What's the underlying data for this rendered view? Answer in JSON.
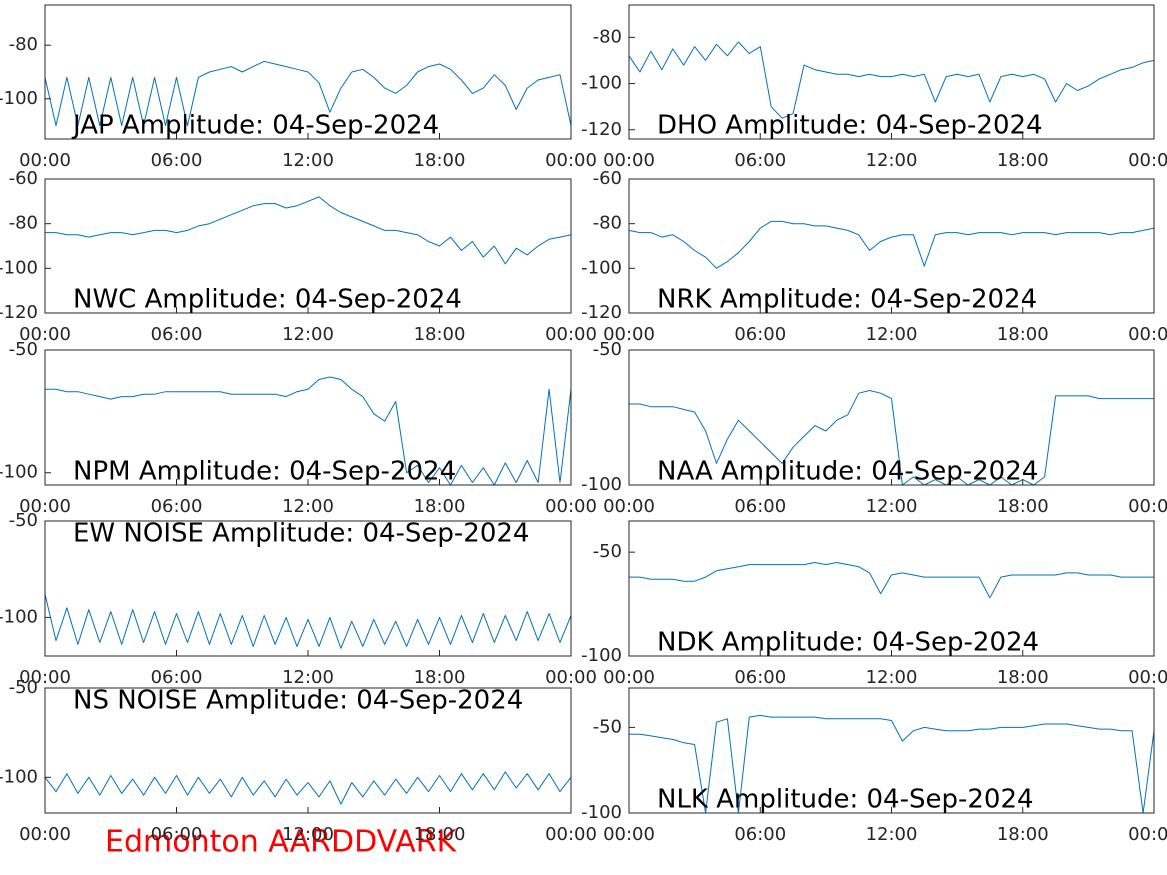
{
  "chart_data": [
    {
      "type": "line",
      "title": "JAP Amplitude: 04-Sep-2024",
      "color": "#0072bd",
      "xlim": [
        0,
        24
      ],
      "ylim": [
        -115,
        -65
      ],
      "yticks": [
        -100,
        -80
      ],
      "xticks": [
        {
          "value": 0,
          "label": "00:00"
        },
        {
          "value": 6,
          "label": "06:00"
        },
        {
          "value": 12,
          "label": "12:00"
        },
        {
          "value": 18,
          "label": "18:00"
        },
        {
          "value": 24,
          "label": "00:00"
        }
      ],
      "x": [
        0,
        0.5,
        1,
        1.5,
        2,
        2.5,
        3,
        3.5,
        4,
        4.5,
        5,
        5.5,
        6,
        6.5,
        7,
        7.5,
        8,
        8.5,
        9,
        9.5,
        10,
        10.5,
        11,
        11.5,
        12,
        12.5,
        13,
        13.5,
        14,
        14.5,
        15,
        15.5,
        16,
        16.5,
        17,
        17.5,
        18,
        18.5,
        19,
        19.5,
        20,
        20.5,
        21,
        21.5,
        22,
        22.5,
        23,
        23.5,
        24
      ],
      "values": [
        -92,
        -110,
        -92,
        -110,
        -92,
        -110,
        -92,
        -110,
        -92,
        -110,
        -92,
        -110,
        -92,
        -110,
        -92,
        -90,
        -89,
        -88,
        -90,
        -88,
        -86,
        -87,
        -88,
        -89,
        -90,
        -94,
        -105,
        -96,
        -90,
        -89,
        -92,
        -96,
        -98,
        -95,
        -90,
        -88,
        -87,
        -89,
        -93,
        -98,
        -96,
        -91,
        -95,
        -104,
        -96,
        -93,
        -92,
        -91,
        -110
      ]
    },
    {
      "type": "line",
      "title": "DHO Amplitude: 04-Sep-2024",
      "color": "#0072bd",
      "xlim": [
        0,
        24
      ],
      "ylim": [
        -124,
        -66
      ],
      "yticks": [
        -120,
        -100,
        -80
      ],
      "xticks": [
        {
          "value": 0,
          "label": "00:00"
        },
        {
          "value": 6,
          "label": "06:00"
        },
        {
          "value": 12,
          "label": "12:00"
        },
        {
          "value": 18,
          "label": "18:00"
        },
        {
          "value": 24,
          "label": "00:00"
        }
      ],
      "x": [
        0,
        0.5,
        1,
        1.5,
        2,
        2.5,
        3,
        3.5,
        4,
        4.5,
        5,
        5.5,
        6,
        6.5,
        7,
        7.5,
        8,
        8.5,
        9,
        9.5,
        10,
        10.5,
        11,
        11.5,
        12,
        12.5,
        13,
        13.5,
        14,
        14.5,
        15,
        15.5,
        16,
        16.5,
        17,
        17.5,
        18,
        18.5,
        19,
        19.5,
        20,
        20.5,
        21,
        21.5,
        22,
        22.5,
        23,
        23.5,
        24
      ],
      "values": [
        -88,
        -95,
        -86,
        -94,
        -85,
        -92,
        -84,
        -90,
        -83,
        -88,
        -82,
        -87,
        -84,
        -110,
        -115,
        -113,
        -92,
        -94,
        -95,
        -96,
        -96,
        -97,
        -96,
        -97,
        -97,
        -96,
        -97,
        -96,
        -108,
        -97,
        -96,
        -97,
        -96,
        -108,
        -97,
        -96,
        -97,
        -96,
        -98,
        -108,
        -100,
        -103,
        -101,
        -98,
        -96,
        -94,
        -93,
        -91,
        -90
      ]
    },
    {
      "type": "line",
      "title": "NWC Amplitude: 04-Sep-2024",
      "color": "#0072bd",
      "xlim": [
        0,
        24
      ],
      "ylim": [
        -120,
        -60
      ],
      "yticks": [
        -120,
        -100,
        -80,
        -60
      ],
      "xticks": [
        {
          "value": 0,
          "label": "00:00"
        },
        {
          "value": 6,
          "label": "06:00"
        },
        {
          "value": 12,
          "label": "12:00"
        },
        {
          "value": 18,
          "label": "18:00"
        },
        {
          "value": 24,
          "label": "00:00"
        }
      ],
      "x": [
        0,
        0.5,
        1,
        1.5,
        2,
        2.5,
        3,
        3.5,
        4,
        4.5,
        5,
        5.5,
        6,
        6.5,
        7,
        7.5,
        8,
        8.5,
        9,
        9.5,
        10,
        10.5,
        11,
        11.5,
        12,
        12.5,
        13,
        13.5,
        14,
        14.5,
        15,
        15.5,
        16,
        16.5,
        17,
        17.5,
        18,
        18.5,
        19,
        19.5,
        20,
        20.5,
        21,
        21.5,
        22,
        22.5,
        23,
        23.5,
        24
      ],
      "values": [
        -84,
        -84,
        -85,
        -85,
        -86,
        -85,
        -84,
        -84,
        -85,
        -84,
        -83,
        -83,
        -84,
        -83,
        -81,
        -80,
        -78,
        -76,
        -74,
        -72,
        -71,
        -71,
        -73,
        -72,
        -70,
        -68,
        -72,
        -75,
        -77,
        -79,
        -81,
        -83,
        -83,
        -84,
        -85,
        -88,
        -90,
        -86,
        -92,
        -88,
        -95,
        -90,
        -98,
        -91,
        -94,
        -90,
        -87,
        -86,
        -85
      ]
    },
    {
      "type": "line",
      "title": "NRK Amplitude: 04-Sep-2024",
      "color": "#0072bd",
      "xlim": [
        0,
        24
      ],
      "ylim": [
        -120,
        -60
      ],
      "yticks": [
        -120,
        -100,
        -80,
        -60
      ],
      "xticks": [
        {
          "value": 0,
          "label": "00:00"
        },
        {
          "value": 6,
          "label": "06:00"
        },
        {
          "value": 12,
          "label": "12:00"
        },
        {
          "value": 18,
          "label": "18:00"
        },
        {
          "value": 24,
          "label": "00:00"
        }
      ],
      "x": [
        0,
        0.5,
        1,
        1.5,
        2,
        2.5,
        3,
        3.5,
        4,
        4.5,
        5,
        5.5,
        6,
        6.5,
        7,
        7.5,
        8,
        8.5,
        9,
        9.5,
        10,
        10.5,
        11,
        11.5,
        12,
        12.5,
        13,
        13.5,
        14,
        14.5,
        15,
        15.5,
        16,
        16.5,
        17,
        17.5,
        18,
        18.5,
        19,
        19.5,
        20,
        20.5,
        21,
        21.5,
        22,
        22.5,
        23,
        23.5,
        24
      ],
      "values": [
        -83,
        -84,
        -84,
        -86,
        -85,
        -88,
        -92,
        -95,
        -100,
        -97,
        -93,
        -88,
        -82,
        -79,
        -79,
        -80,
        -80,
        -81,
        -81,
        -82,
        -83,
        -85,
        -92,
        -88,
        -86,
        -85,
        -85,
        -99,
        -85,
        -84,
        -84,
        -85,
        -84,
        -84,
        -84,
        -85,
        -84,
        -84,
        -84,
        -85,
        -84,
        -84,
        -84,
        -84,
        -85,
        -84,
        -84,
        -83,
        -82
      ]
    },
    {
      "type": "line",
      "title": "NPM Amplitude: 04-Sep-2024",
      "color": "#0072bd",
      "xlim": [
        0,
        24
      ],
      "ylim": [
        -105,
        -50
      ],
      "yticks": [
        -100,
        -50
      ],
      "xticks": [
        {
          "value": 0,
          "label": "00:00"
        },
        {
          "value": 6,
          "label": "06:00"
        },
        {
          "value": 12,
          "label": "12:00"
        },
        {
          "value": 18,
          "label": "18:00"
        },
        {
          "value": 24,
          "label": "00:00"
        }
      ],
      "x": [
        0,
        0.5,
        1,
        1.5,
        2,
        2.5,
        3,
        3.5,
        4,
        4.5,
        5,
        5.5,
        6,
        6.5,
        7,
        7.5,
        8,
        8.5,
        9,
        9.5,
        10,
        10.5,
        11,
        11.5,
        12,
        12.5,
        13,
        13.5,
        14,
        14.5,
        15,
        15.5,
        16,
        16.5,
        17,
        17.5,
        18,
        18.5,
        19,
        19.5,
        20,
        20.5,
        21,
        21.5,
        22,
        22.5,
        23,
        23.5,
        24
      ],
      "values": [
        -66,
        -66,
        -67,
        -67,
        -68,
        -69,
        -70,
        -69,
        -69,
        -68,
        -68,
        -67,
        -67,
        -67,
        -67,
        -67,
        -67,
        -68,
        -68,
        -68,
        -68,
        -68,
        -69,
        -67,
        -66,
        -62,
        -61,
        -62,
        -66,
        -69,
        -76,
        -79,
        -71,
        -100,
        -97,
        -104,
        -98,
        -105,
        -97,
        -104,
        -98,
        -105,
        -96,
        -104,
        -95,
        -104,
        -66,
        -104,
        -66
      ]
    },
    {
      "type": "line",
      "title": "NAA Amplitude: 04-Sep-2024",
      "color": "#0072bd",
      "xlim": [
        0,
        24
      ],
      "ylim": [
        -100,
        -50
      ],
      "yticks": [
        -100,
        -50
      ],
      "xticks": [
        {
          "value": 0,
          "label": "00:00"
        },
        {
          "value": 6,
          "label": "06:00"
        },
        {
          "value": 12,
          "label": "12:00"
        },
        {
          "value": 18,
          "label": "18:00"
        },
        {
          "value": 24,
          "label": "00:00"
        }
      ],
      "x": [
        0,
        0.5,
        1,
        1.5,
        2,
        2.5,
        3,
        3.5,
        4,
        4.5,
        5,
        5.5,
        6,
        6.5,
        7,
        7.5,
        8,
        8.5,
        9,
        9.5,
        10,
        10.5,
        11,
        11.5,
        12,
        12.5,
        13,
        13.5,
        14,
        14.5,
        15,
        15.5,
        16,
        16.5,
        17,
        17.5,
        18,
        18.5,
        19,
        19.5,
        20,
        20.5,
        21,
        21.5,
        22,
        22.5,
        23,
        23.5,
        24
      ],
      "values": [
        -70,
        -70,
        -71,
        -71,
        -71,
        -72,
        -73,
        -80,
        -92,
        -83,
        -76,
        -80,
        -84,
        -88,
        -92,
        -86,
        -82,
        -78,
        -80,
        -76,
        -74,
        -66,
        -65,
        -66,
        -68,
        -100,
        -97,
        -100,
        -98,
        -100,
        -97,
        -100,
        -98,
        -100,
        -97,
        -100,
        -98,
        -100,
        -97,
        -67,
        -67,
        -67,
        -67,
        -68,
        -68,
        -68,
        -68,
        -68,
        -68
      ]
    },
    {
      "type": "line",
      "title": "EW NOISE Amplitude: 04-Sep-2024",
      "color": "#0072bd",
      "xlim": [
        0,
        24
      ],
      "ylim": [
        -120,
        -50
      ],
      "yticks": [
        -100,
        -50
      ],
      "xticks": [
        {
          "value": 0,
          "label": "00:00"
        },
        {
          "value": 6,
          "label": "06:00"
        },
        {
          "value": 12,
          "label": "12:00"
        },
        {
          "value": 18,
          "label": "18:00"
        },
        {
          "value": 24,
          "label": "00:00"
        }
      ],
      "x": [
        0,
        0.5,
        1,
        1.5,
        2,
        2.5,
        3,
        3.5,
        4,
        4.5,
        5,
        5.5,
        6,
        6.5,
        7,
        7.5,
        8,
        8.5,
        9,
        9.5,
        10,
        10.5,
        11,
        11.5,
        12,
        12.5,
        13,
        13.5,
        14,
        14.5,
        15,
        15.5,
        16,
        16.5,
        17,
        17.5,
        18,
        18.5,
        19,
        19.5,
        20,
        20.5,
        21,
        21.5,
        22,
        22.5,
        23,
        23.5,
        24
      ],
      "values": [
        -88,
        -112,
        -95,
        -114,
        -96,
        -113,
        -97,
        -114,
        -96,
        -113,
        -97,
        -114,
        -98,
        -113,
        -97,
        -114,
        -98,
        -114,
        -99,
        -115,
        -99,
        -114,
        -100,
        -115,
        -101,
        -115,
        -100,
        -116,
        -102,
        -115,
        -101,
        -114,
        -102,
        -115,
        -101,
        -114,
        -100,
        -114,
        -99,
        -113,
        -98,
        -113,
        -99,
        -112,
        -97,
        -112,
        -98,
        -113,
        -99
      ]
    },
    {
      "type": "line",
      "title": "NDK Amplitude: 04-Sep-2024",
      "color": "#0072bd",
      "xlim": [
        0,
        24
      ],
      "ylim": [
        -100,
        -35
      ],
      "yticks": [
        -100,
        -50
      ],
      "xticks": [
        {
          "value": 0,
          "label": "00:00"
        },
        {
          "value": 6,
          "label": "06:00"
        },
        {
          "value": 12,
          "label": "12:00"
        },
        {
          "value": 18,
          "label": "18:00"
        },
        {
          "value": 24,
          "label": "00:00"
        }
      ],
      "x": [
        0,
        0.5,
        1,
        1.5,
        2,
        2.5,
        3,
        3.5,
        4,
        4.5,
        5,
        5.5,
        6,
        6.5,
        7,
        7.5,
        8,
        8.5,
        9,
        9.5,
        10,
        10.5,
        11,
        11.5,
        12,
        12.5,
        13,
        13.5,
        14,
        14.5,
        15,
        15.5,
        16,
        16.5,
        17,
        17.5,
        18,
        18.5,
        19,
        19.5,
        20,
        20.5,
        21,
        21.5,
        22,
        22.5,
        23,
        23.5,
        24
      ],
      "values": [
        -62,
        -62,
        -63,
        -63,
        -63,
        -64,
        -64,
        -62,
        -59,
        -58,
        -57,
        -56,
        -56,
        -56,
        -56,
        -56,
        -56,
        -55,
        -56,
        -55,
        -56,
        -57,
        -60,
        -70,
        -61,
        -60,
        -61,
        -62,
        -62,
        -62,
        -62,
        -62,
        -62,
        -72,
        -62,
        -61,
        -61,
        -61,
        -61,
        -61,
        -60,
        -60,
        -61,
        -61,
        -61,
        -62,
        -62,
        -62,
        -62
      ]
    },
    {
      "type": "line",
      "title": "NS NOISE Amplitude: 04-Sep-2024",
      "color": "#0072bd",
      "xlim": [
        0,
        24
      ],
      "ylim": [
        -120,
        -50
      ],
      "yticks": [
        -100,
        -50
      ],
      "xticks": [
        {
          "value": 0,
          "label": "00:00"
        },
        {
          "value": 6,
          "label": "06:00"
        },
        {
          "value": 12,
          "label": "12:00"
        },
        {
          "value": 18,
          "label": "18:00"
        },
        {
          "value": 24,
          "label": "00:00"
        }
      ],
      "x": [
        0,
        0.5,
        1,
        1.5,
        2,
        2.5,
        3,
        3.5,
        4,
        4.5,
        5,
        5.5,
        6,
        6.5,
        7,
        7.5,
        8,
        8.5,
        9,
        9.5,
        10,
        10.5,
        11,
        11.5,
        12,
        12.5,
        13,
        13.5,
        14,
        14.5,
        15,
        15.5,
        16,
        16.5,
        17,
        17.5,
        18,
        18.5,
        19,
        19.5,
        20,
        20.5,
        21,
        21.5,
        22,
        22.5,
        23,
        23.5,
        24
      ],
      "values": [
        -100,
        -108,
        -98,
        -109,
        -100,
        -110,
        -99,
        -109,
        -101,
        -110,
        -100,
        -109,
        -99,
        -110,
        -100,
        -109,
        -101,
        -111,
        -100,
        -110,
        -102,
        -111,
        -101,
        -110,
        -103,
        -111,
        -102,
        -115,
        -103,
        -111,
        -102,
        -110,
        -101,
        -109,
        -100,
        -108,
        -99,
        -108,
        -98,
        -107,
        -98,
        -107,
        -97,
        -106,
        -98,
        -107,
        -98,
        -108,
        -100
      ]
    },
    {
      "type": "line",
      "title": "NLK Amplitude: 04-Sep-2024",
      "color": "#0072bd",
      "xlim": [
        0,
        24
      ],
      "ylim": [
        -100,
        -27
      ],
      "yticks": [
        -100,
        -50
      ],
      "xticks": [
        {
          "value": 0,
          "label": "00:00"
        },
        {
          "value": 6,
          "label": "06:00"
        },
        {
          "value": 12,
          "label": "12:00"
        },
        {
          "value": 18,
          "label": "18:00"
        },
        {
          "value": 24,
          "label": "00:00"
        }
      ],
      "x": [
        0,
        0.5,
        1,
        1.5,
        2,
        2.5,
        3,
        3.5,
        4,
        4.5,
        5,
        5.5,
        6,
        6.5,
        7,
        7.5,
        8,
        8.5,
        9,
        9.5,
        10,
        10.5,
        11,
        11.5,
        12,
        12.5,
        13,
        13.5,
        14,
        14.5,
        15,
        15.5,
        16,
        16.5,
        17,
        17.5,
        18,
        18.5,
        19,
        19.5,
        20,
        20.5,
        21,
        21.5,
        22,
        22.5,
        23,
        23.5,
        24
      ],
      "values": [
        -54,
        -54,
        -55,
        -56,
        -57,
        -59,
        -60,
        -100,
        -47,
        -45,
        -100,
        -44,
        -43,
        -44,
        -44,
        -44,
        -44,
        -44,
        -45,
        -45,
        -45,
        -45,
        -45,
        -45,
        -46,
        -58,
        -52,
        -50,
        -51,
        -52,
        -52,
        -52,
        -51,
        -51,
        -50,
        -50,
        -50,
        -49,
        -48,
        -48,
        -48,
        -49,
        -50,
        -51,
        -51,
        -52,
        -52,
        -100,
        -52
      ]
    }
  ],
  "footer": "Edmonton AARDDVARK"
}
